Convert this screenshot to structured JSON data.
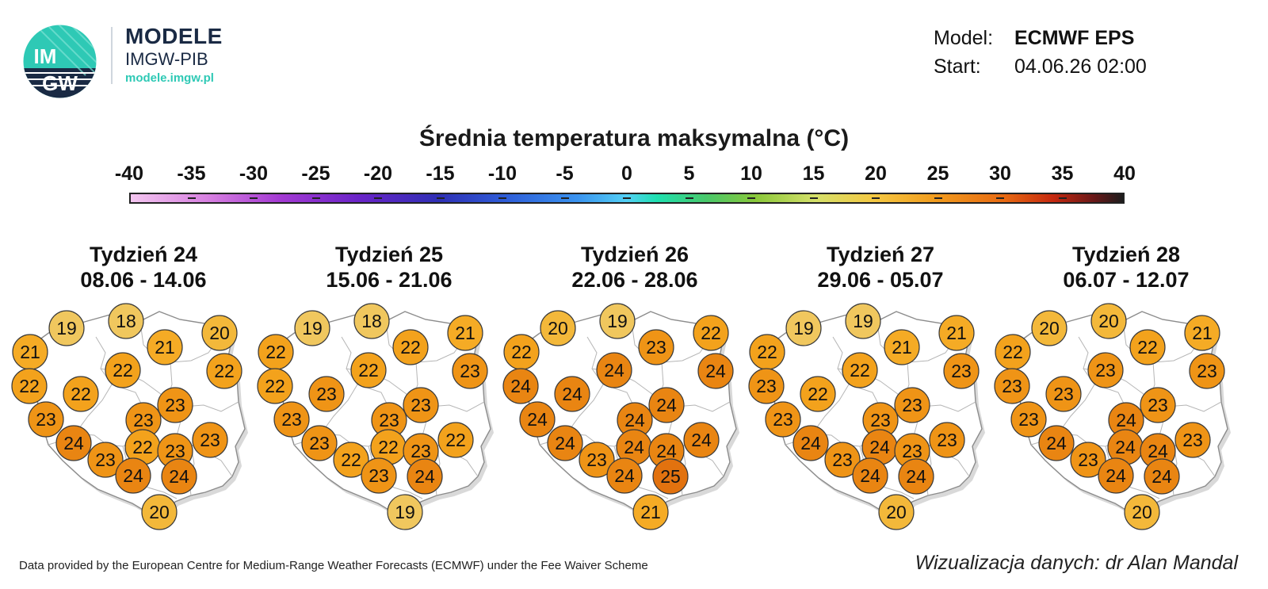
{
  "logo": {
    "mark_top": "IM",
    "mark_bottom": "GW",
    "title": "MODELE",
    "subtitle": "IMGW-PIB",
    "url": "modele.imgw.pl",
    "colors": {
      "navy": "#1a2a44",
      "teal": "#2ec9b5"
    }
  },
  "meta": {
    "model_label": "Model:",
    "model_value": "ECMWF EPS",
    "start_label": "Start:",
    "start_value": "04.06.26 02:00"
  },
  "scale": {
    "title": "Średnia temperatura maksymalna (°C)",
    "ticks": [
      "-40",
      "-35",
      "-30",
      "-25",
      "-20",
      "-15",
      "-10",
      "-5",
      "0",
      "5",
      "10",
      "15",
      "20",
      "25",
      "30",
      "35",
      "40"
    ],
    "range": [
      -40,
      40
    ]
  },
  "weeks": [
    {
      "title": "Tydzień 24",
      "dates": "08.06 - 14.06",
      "values": [
        19,
        18,
        21,
        20,
        21,
        22,
        22,
        22,
        22,
        23,
        23,
        23,
        24,
        23,
        22,
        23,
        23,
        24,
        24,
        20
      ]
    },
    {
      "title": "Tydzień 25",
      "dates": "15.06 - 21.06",
      "values": [
        19,
        18,
        22,
        21,
        22,
        22,
        23,
        22,
        23,
        23,
        23,
        23,
        23,
        22,
        22,
        23,
        22,
        23,
        24,
        19
      ]
    },
    {
      "title": "Tydzień 26",
      "dates": "22.06 - 28.06",
      "values": [
        20,
        19,
        23,
        22,
        22,
        24,
        24,
        24,
        24,
        24,
        24,
        24,
        24,
        23,
        24,
        24,
        24,
        24,
        25,
        21
      ]
    },
    {
      "title": "Tydzień 27",
      "dates": "29.06 - 05.07",
      "values": [
        19,
        19,
        21,
        21,
        22,
        22,
        23,
        23,
        22,
        23,
        23,
        23,
        24,
        23,
        24,
        23,
        23,
        24,
        24,
        20
      ]
    },
    {
      "title": "Tydzień 28",
      "dates": "06.07 - 12.07",
      "values": [
        20,
        20,
        22,
        21,
        22,
        23,
        23,
        23,
        23,
        24,
        23,
        23,
        24,
        23,
        24,
        24,
        23,
        24,
        24,
        20
      ]
    }
  ],
  "footer": {
    "left": "Data provided by the European Centre for Medium-Range Weather Forecasts (ECMWF) under the Fee Waiver Scheme",
    "right": "Wizualizacja danych: dr Alan Mandal"
  }
}
